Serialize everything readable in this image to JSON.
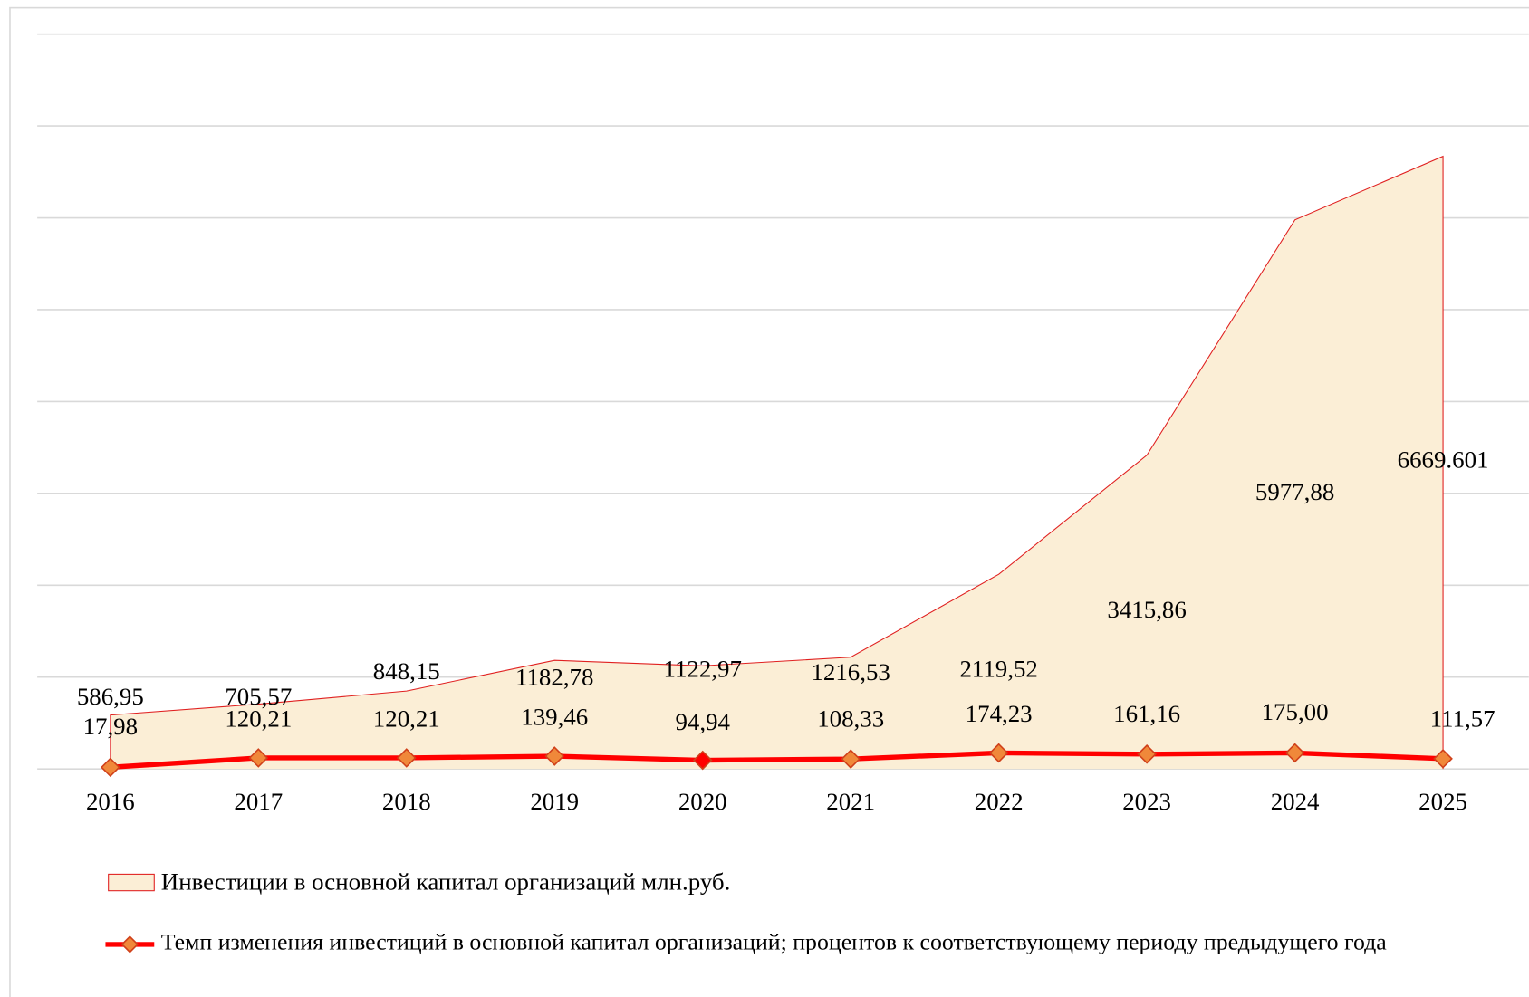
{
  "chart_data": {
    "type": "area-line",
    "categories": [
      "2016",
      "2017",
      "2018",
      "2019",
      "2020",
      "2021",
      "2022",
      "2023",
      "2024",
      "2025"
    ],
    "series": [
      {
        "name": "Инвестиции в основной капитал организаций  млн.руб.",
        "type": "area",
        "color": "#fbeed6",
        "values": [
          586.95,
          705.57,
          848.15,
          1182.78,
          1122.97,
          1216.53,
          2119.52,
          3415.86,
          5977.88,
          6669.601
        ],
        "value_labels": [
          "586,95",
          "705,57",
          "848,15",
          "1182,78",
          "1122,97",
          "1216,53",
          "2119,52",
          "3415,86",
          "5977,88",
          "6669.601"
        ]
      },
      {
        "name": "Темп изменения инвестиций в основной капитал организаций; процентов к соответствующему периоду предыдущего года",
        "type": "line",
        "color": "#ff0000",
        "values": [
          17.98,
          120.21,
          120.21,
          139.46,
          94.94,
          108.33,
          174.23,
          161.16,
          175.0,
          111.57
        ],
        "value_labels": [
          "17,98",
          "120,21",
          "120,21",
          "139,46",
          "94,94",
          "108,33",
          "174,23",
          "161,16",
          "175,00",
          "111,57"
        ]
      }
    ],
    "ylim": [
      0,
      8000
    ],
    "yticks": [
      0,
      1000,
      2000,
      3000,
      4000,
      5000,
      6000,
      7000,
      8000
    ],
    "grid": true
  }
}
